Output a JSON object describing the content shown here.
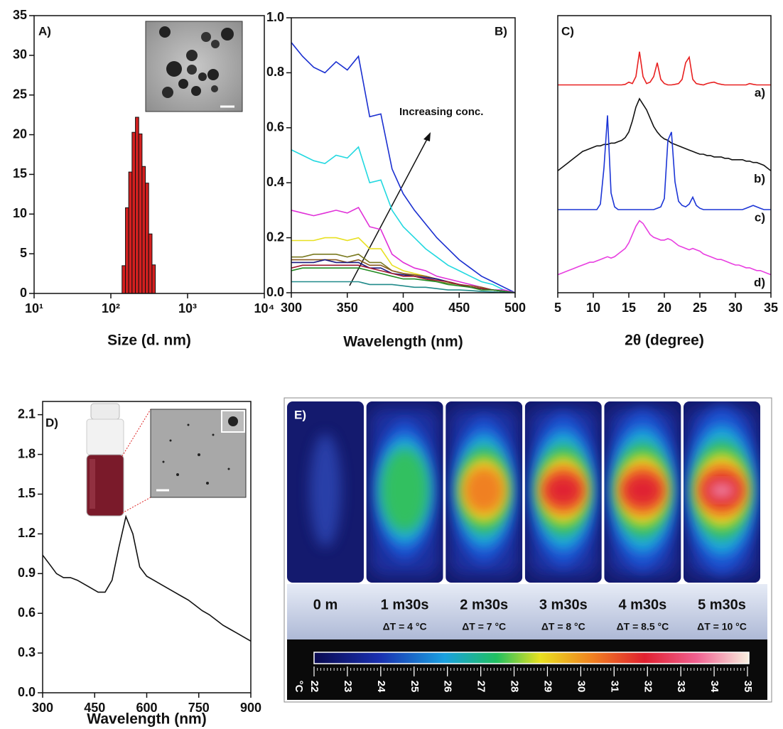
{
  "chart_data": [
    {
      "type": "histogram",
      "label": "A)",
      "xlabel": "Size (d. nm)",
      "xscale": "log",
      "xlim": [
        10,
        10000
      ],
      "xticks": [
        {
          "value": 10,
          "label": "10¹"
        },
        {
          "value": 100,
          "label": "10²"
        },
        {
          "value": 1000,
          "label": "10³"
        },
        {
          "value": 10000,
          "label": "10⁴"
        }
      ],
      "ylim": [
        0,
        35
      ],
      "yticks": [
        0,
        5,
        10,
        15,
        20,
        25,
        30,
        35
      ],
      "color": "#d42020",
      "bins": [
        140,
        155,
        171,
        189,
        209,
        231,
        255,
        282,
        311,
        344,
        380
      ],
      "values": [
        3.5,
        10.8,
        15.3,
        20.3,
        22.2,
        20.1,
        16,
        13.9,
        7.5,
        3.6
      ]
    },
    {
      "type": "line",
      "label": "B)",
      "xlabel": "Wavelength (nm)",
      "annotation": "Increasing conc.",
      "xlim": [
        300,
        500
      ],
      "xticks": [
        300,
        350,
        400,
        450,
        500
      ],
      "ylim": [
        0,
        1
      ],
      "yticks": [
        {
          "value": 0,
          "label": "0.0"
        },
        0.2,
        0.4,
        0.6,
        0.8,
        {
          "value": 1,
          "label": "1.0"
        }
      ],
      "x": [
        300,
        310,
        320,
        330,
        340,
        350,
        360,
        370,
        380,
        390,
        400,
        410,
        420,
        430,
        440,
        450,
        460,
        470,
        480,
        490,
        500
      ],
      "series": [
        {
          "color": "#1a2fd0",
          "values": [
            0.91,
            0.86,
            0.82,
            0.8,
            0.84,
            0.81,
            0.86,
            0.64,
            0.65,
            0.45,
            0.36,
            0.3,
            0.25,
            0.2,
            0.16,
            0.12,
            0.09,
            0.06,
            0.04,
            0.02,
            0.0
          ]
        },
        {
          "color": "#22d8e0",
          "values": [
            0.52,
            0.5,
            0.48,
            0.47,
            0.5,
            0.49,
            0.53,
            0.4,
            0.41,
            0.3,
            0.24,
            0.2,
            0.16,
            0.13,
            0.1,
            0.08,
            0.06,
            0.04,
            0.03,
            0.01,
            0.0
          ]
        },
        {
          "color": "#e030d8",
          "values": [
            0.3,
            0.29,
            0.28,
            0.29,
            0.3,
            0.29,
            0.31,
            0.24,
            0.23,
            0.14,
            0.11,
            0.09,
            0.08,
            0.06,
            0.05,
            0.04,
            0.03,
            0.02,
            0.01,
            0.01,
            0.0
          ]
        },
        {
          "color": "#e8e020",
          "values": [
            0.19,
            0.19,
            0.19,
            0.2,
            0.2,
            0.19,
            0.2,
            0.16,
            0.16,
            0.1,
            0.08,
            0.07,
            0.06,
            0.05,
            0.04,
            0.03,
            0.02,
            0.015,
            0.01,
            0.005,
            0.0
          ]
        },
        {
          "color": "#7a7a20",
          "values": [
            0.13,
            0.13,
            0.14,
            0.14,
            0.14,
            0.13,
            0.14,
            0.11,
            0.11,
            0.08,
            0.07,
            0.06,
            0.05,
            0.04,
            0.035,
            0.03,
            0.02,
            0.015,
            0.01,
            0.005,
            0.0
          ]
        },
        {
          "color": "#8a5a20",
          "values": [
            0.12,
            0.12,
            0.12,
            0.12,
            0.12,
            0.11,
            0.12,
            0.1,
            0.1,
            0.08,
            0.07,
            0.065,
            0.06,
            0.05,
            0.04,
            0.03,
            0.025,
            0.02,
            0.01,
            0.005,
            0.0
          ]
        },
        {
          "color": "#1a1a80",
          "values": [
            0.11,
            0.11,
            0.11,
            0.12,
            0.11,
            0.11,
            0.11,
            0.09,
            0.09,
            0.07,
            0.065,
            0.06,
            0.055,
            0.05,
            0.04,
            0.03,
            0.02,
            0.015,
            0.01,
            0.005,
            0.0
          ]
        },
        {
          "color": "#a01830",
          "values": [
            0.09,
            0.1,
            0.1,
            0.1,
            0.1,
            0.1,
            0.1,
            0.09,
            0.08,
            0.07,
            0.06,
            0.06,
            0.05,
            0.045,
            0.04,
            0.03,
            0.02,
            0.015,
            0.01,
            0.005,
            0.0
          ]
        },
        {
          "color": "#208a20",
          "values": [
            0.08,
            0.09,
            0.09,
            0.09,
            0.09,
            0.09,
            0.09,
            0.08,
            0.07,
            0.06,
            0.05,
            0.05,
            0.045,
            0.04,
            0.03,
            0.025,
            0.02,
            0.01,
            0.01,
            0.005,
            0.0
          ]
        },
        {
          "color": "#208a8a",
          "values": [
            0.04,
            0.04,
            0.04,
            0.04,
            0.04,
            0.04,
            0.04,
            0.03,
            0.03,
            0.03,
            0.025,
            0.02,
            0.02,
            0.015,
            0.01,
            0.01,
            0.008,
            0.005,
            0.003,
            0.001,
            0.0
          ]
        }
      ]
    },
    {
      "type": "line",
      "label": "C)",
      "xlabel": "2θ (degree)",
      "series_labels": true,
      "xlim": [
        5,
        35
      ],
      "xticks": [
        5,
        10,
        15,
        20,
        25,
        30,
        35
      ],
      "ylim": [
        0,
        1
      ],
      "x": [
        5,
        5.5,
        6,
        6.5,
        7,
        7.5,
        8,
        8.5,
        9,
        9.5,
        10,
        10.5,
        11,
        11.5,
        12,
        12.5,
        13,
        13.5,
        14,
        14.5,
        15,
        15.5,
        16,
        16.5,
        17,
        17.5,
        18,
        18.5,
        19,
        19.5,
        20,
        20.5,
        21,
        21.5,
        22,
        22.5,
        23,
        23.5,
        24,
        24.5,
        25,
        25.5,
        26,
        26.5,
        27,
        27.5,
        28,
        28.5,
        29,
        29.5,
        30,
        30.5,
        31,
        31.5,
        32,
        32.5,
        33,
        33.5,
        34,
        34.5,
        35
      ],
      "series": [
        {
          "name": "a)",
          "color": "#e82020",
          "values": [
            0.75,
            0.75,
            0.75,
            0.75,
            0.75,
            0.75,
            0.75,
            0.75,
            0.75,
            0.75,
            0.75,
            0.75,
            0.75,
            0.75,
            0.75,
            0.75,
            0.75,
            0.75,
            0.75,
            0.752,
            0.76,
            0.755,
            0.78,
            0.87,
            0.78,
            0.755,
            0.76,
            0.78,
            0.83,
            0.77,
            0.755,
            0.75,
            0.75,
            0.752,
            0.755,
            0.77,
            0.83,
            0.85,
            0.77,
            0.755,
            0.752,
            0.75,
            0.755,
            0.758,
            0.76,
            0.755,
            0.752,
            0.75,
            0.75,
            0.75,
            0.75,
            0.75,
            0.75,
            0.75,
            0.755,
            0.752,
            0.75,
            0.75,
            0.75,
            0.75,
            0.75
          ]
        },
        {
          "name": "b)",
          "color": "#111111",
          "values": [
            0.44,
            0.45,
            0.46,
            0.47,
            0.48,
            0.49,
            0.5,
            0.51,
            0.515,
            0.52,
            0.525,
            0.53,
            0.53,
            0.535,
            0.535,
            0.54,
            0.54,
            0.545,
            0.55,
            0.56,
            0.58,
            0.62,
            0.67,
            0.7,
            0.68,
            0.66,
            0.63,
            0.6,
            0.58,
            0.565,
            0.555,
            0.55,
            0.54,
            0.535,
            0.53,
            0.525,
            0.52,
            0.515,
            0.51,
            0.505,
            0.5,
            0.5,
            0.495,
            0.495,
            0.49,
            0.49,
            0.49,
            0.485,
            0.485,
            0.48,
            0.48,
            0.48,
            0.48,
            0.475,
            0.475,
            0.47,
            0.47,
            0.465,
            0.46,
            0.45,
            0.44
          ]
        },
        {
          "name": "c)",
          "color": "#1c35d6",
          "values": [
            0.3,
            0.3,
            0.3,
            0.3,
            0.3,
            0.3,
            0.3,
            0.3,
            0.3,
            0.3,
            0.3,
            0.3,
            0.32,
            0.45,
            0.64,
            0.36,
            0.31,
            0.3,
            0.3,
            0.3,
            0.3,
            0.3,
            0.3,
            0.3,
            0.3,
            0.3,
            0.3,
            0.3,
            0.305,
            0.31,
            0.34,
            0.55,
            0.58,
            0.4,
            0.33,
            0.315,
            0.31,
            0.32,
            0.345,
            0.315,
            0.305,
            0.3,
            0.3,
            0.3,
            0.3,
            0.3,
            0.3,
            0.3,
            0.3,
            0.3,
            0.3,
            0.3,
            0.3,
            0.305,
            0.31,
            0.315,
            0.31,
            0.305,
            0.3,
            0.3,
            0.3
          ]
        },
        {
          "name": "d)",
          "color": "#e83ee0",
          "values": [
            0.065,
            0.07,
            0.075,
            0.08,
            0.085,
            0.09,
            0.095,
            0.1,
            0.105,
            0.11,
            0.11,
            0.115,
            0.12,
            0.125,
            0.13,
            0.125,
            0.13,
            0.14,
            0.15,
            0.16,
            0.18,
            0.21,
            0.24,
            0.26,
            0.25,
            0.23,
            0.21,
            0.2,
            0.195,
            0.19,
            0.19,
            0.195,
            0.19,
            0.18,
            0.17,
            0.165,
            0.16,
            0.155,
            0.16,
            0.155,
            0.15,
            0.14,
            0.135,
            0.13,
            0.125,
            0.12,
            0.12,
            0.115,
            0.11,
            0.105,
            0.1,
            0.1,
            0.095,
            0.09,
            0.09,
            0.085,
            0.08,
            0.08,
            0.075,
            0.07,
            0.065
          ]
        }
      ]
    },
    {
      "type": "line",
      "label": "D)",
      "xlabel": "Wavelength (nm)",
      "xlim": [
        300,
        900
      ],
      "xticks": [
        300,
        450,
        600,
        750,
        900
      ],
      "ylim": [
        0,
        2.2
      ],
      "yticks": [
        {
          "value": 0,
          "label": "0.0"
        },
        0.3,
        0.6,
        0.9,
        1.2,
        1.5,
        1.8,
        2.1
      ],
      "x": [
        300,
        320,
        340,
        360,
        380,
        400,
        420,
        440,
        460,
        480,
        500,
        520,
        540,
        560,
        580,
        600,
        620,
        640,
        660,
        680,
        700,
        720,
        740,
        760,
        780,
        800,
        820,
        840,
        860,
        880,
        900
      ],
      "series": [
        {
          "color": "#111111",
          "values": [
            1.04,
            0.97,
            0.9,
            0.87,
            0.87,
            0.85,
            0.82,
            0.79,
            0.76,
            0.76,
            0.85,
            1.1,
            1.33,
            1.2,
            0.95,
            0.88,
            0.85,
            0.82,
            0.79,
            0.76,
            0.73,
            0.7,
            0.66,
            0.62,
            0.59,
            0.55,
            0.51,
            0.48,
            0.45,
            0.42,
            0.39
          ]
        }
      ]
    },
    {
      "type": "image",
      "label": "E)",
      "frames": [
        {
          "label": "0 m"
        },
        {
          "label": "1 m30s",
          "delta_t": "ΔT = 4 °C"
        },
        {
          "label": "2 m30s",
          "delta_t": "ΔT = 7 °C"
        },
        {
          "label": "3 m30s",
          "delta_t": "ΔT = 8 °C"
        },
        {
          "label": "4 m30s",
          "delta_t": "ΔT = 8.5 °C"
        },
        {
          "label": "5 m30s",
          "delta_t": "ΔT = 10 °C"
        }
      ],
      "colorbar_unit": "°C",
      "clim": [
        22,
        35
      ],
      "cticks": [
        22,
        23,
        24,
        25,
        26,
        27,
        28,
        29,
        30,
        31,
        32,
        33,
        34,
        35
      ]
    }
  ]
}
